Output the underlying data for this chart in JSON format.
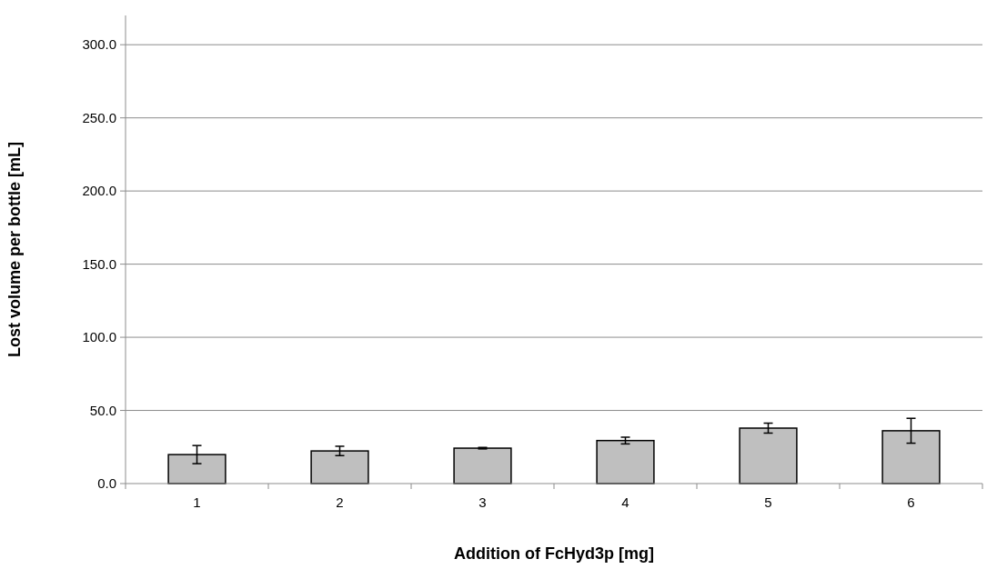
{
  "chart_data": {
    "type": "bar",
    "xlabel": "Addition of FcHyd3p [mg]",
    "ylabel": "Lost volume per bottle [mL]",
    "categories": [
      "1",
      "2",
      "3",
      "4",
      "5",
      "6"
    ],
    "values": [
      19.8,
      22.3,
      24.2,
      29.4,
      37.9,
      36.1
    ],
    "errors": [
      6.2,
      3.2,
      0.5,
      2.3,
      3.4,
      8.5
    ],
    "color": "#bfbfbf",
    "ylim": [
      0,
      320
    ],
    "yticks": [
      {
        "value": 0,
        "label": "0.0"
      },
      {
        "value": 50,
        "label": "50.0"
      },
      {
        "value": 100,
        "label": "100.0"
      },
      {
        "value": 150,
        "label": "150.0"
      },
      {
        "value": 200,
        "label": "200.0"
      },
      {
        "value": 250,
        "label": "250.0"
      },
      {
        "value": 300,
        "label": "300.0"
      }
    ],
    "grid": "y"
  }
}
